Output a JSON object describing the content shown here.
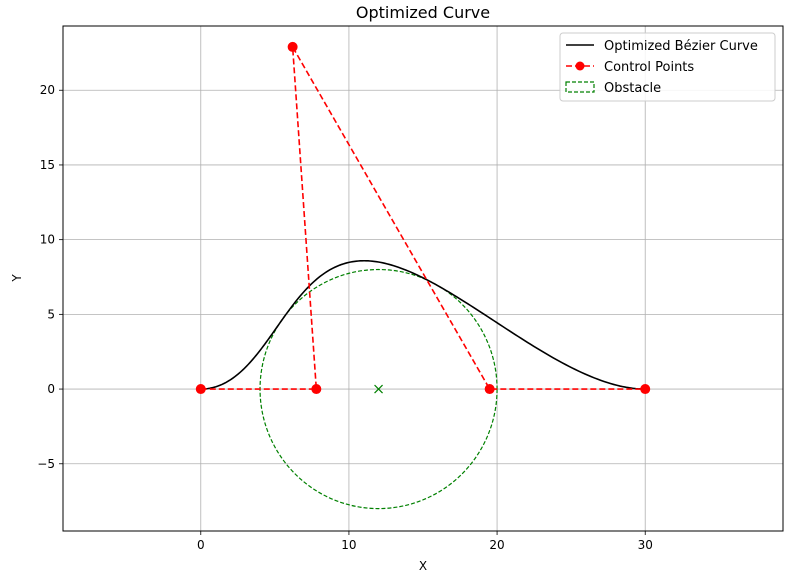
{
  "chart_data": {
    "type": "line",
    "title": "Optimized Curve",
    "xlabel": "X",
    "ylabel": "Y",
    "xlim": [
      -9.3,
      39.3
    ],
    "ylim": [
      -9.5,
      24.3
    ],
    "xticks": [
      0,
      10,
      20,
      30
    ],
    "yticks": [
      -5,
      0,
      5,
      10,
      15,
      20
    ],
    "xtick_labels": [
      "0",
      "10",
      "20",
      "30"
    ],
    "ytick_labels": [
      "−5",
      "0",
      "5",
      "10",
      "15",
      "20"
    ],
    "grid": true,
    "legend_position": "top-right",
    "series": [
      {
        "name": "Optimized Bézier Curve",
        "kind": "bezier",
        "color": "#000000",
        "style": "solid"
      },
      {
        "name": "Control Points",
        "kind": "polyline-markers",
        "color": "#ff0000",
        "style": "dashed",
        "x": [
          0,
          7.8,
          6.2,
          19.5,
          30
        ],
        "y": [
          0,
          0,
          22.9,
          0,
          0
        ]
      },
      {
        "name": "Obstacle",
        "kind": "circle",
        "color": "#008000",
        "style": "dashed",
        "center": [
          12,
          0
        ],
        "radius": 8
      }
    ]
  }
}
